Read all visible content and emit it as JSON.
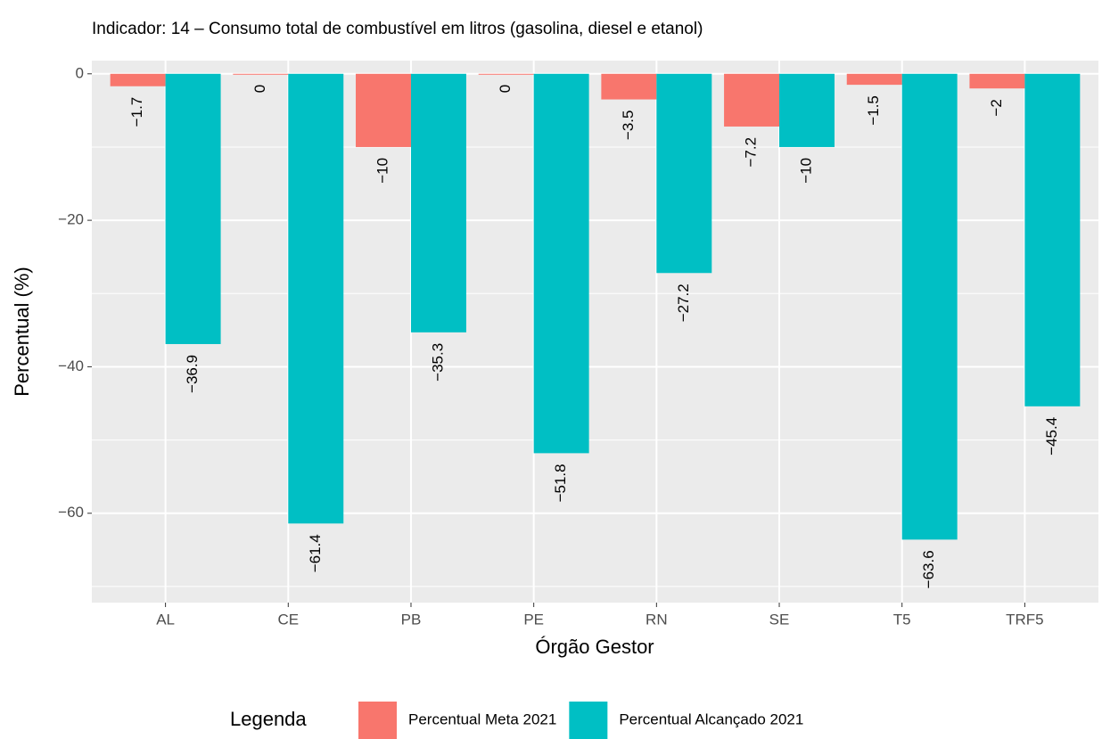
{
  "chart_data": {
    "type": "bar",
    "title": "Indicador: 14 – Consumo total de combustível em litros (gasolina, diesel e etanol)",
    "x_label": "Órgão Gestor",
    "y_label": "Percentual (%)",
    "legend_title": "Legenda",
    "categories": [
      "AL",
      "CE",
      "PB",
      "PE",
      "RN",
      "SE",
      "T5",
      "TRF5"
    ],
    "series": [
      {
        "name": "Percentual Meta 2021",
        "color": "#f8766d",
        "values": [
          -1.7,
          0,
          -10,
          0,
          -3.5,
          -7.2,
          -1.5,
          -2
        ],
        "value_labels": [
          "−1.7",
          "0",
          "−10",
          "0",
          "−3.5",
          "−7.2",
          "−1.5",
          "−2"
        ]
      },
      {
        "name": "Percentual Alcançado 2021",
        "color": "#00bfc4",
        "values": [
          -36.9,
          -61.4,
          -35.3,
          -51.8,
          -27.2,
          -10,
          -63.6,
          -45.4
        ],
        "value_labels": [
          "−36.9",
          "−61.4",
          "−35.3",
          "−51.8",
          "−27.2",
          "−10",
          "−63.6",
          "−45.4"
        ]
      }
    ],
    "ylim": [
      -72.2,
      1.8
    ],
    "yticks": [
      {
        "value": -60,
        "label": "−60"
      },
      {
        "value": -40,
        "label": "−40"
      },
      {
        "value": -20,
        "label": "−20"
      },
      0
    ],
    "y_minor_ticks": [
      -70,
      -50,
      -30,
      -10
    ],
    "grid": true,
    "legend_position": "bottom"
  }
}
